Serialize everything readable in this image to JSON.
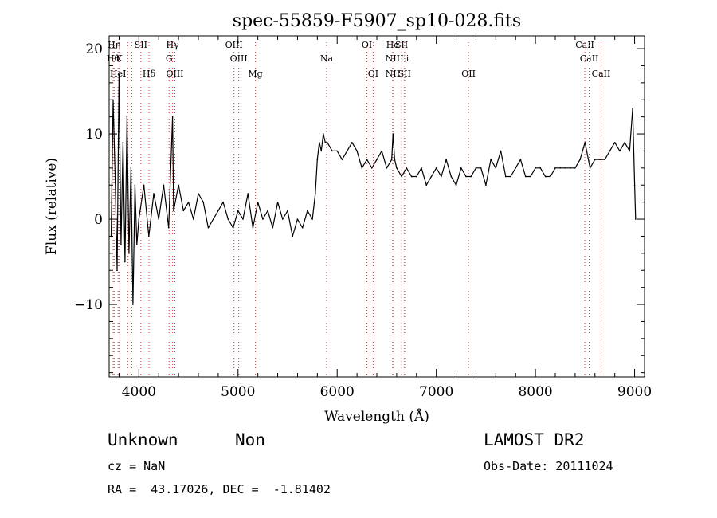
{
  "chart_data": {
    "type": "line",
    "title": "spec-55859-F5907_sp10-028.fits",
    "xlabel": "Wavelength (Å)",
    "ylabel": "Flux (relative)",
    "xlim": [
      3700,
      9100
    ],
    "ylim": [
      -18.5,
      21.5
    ],
    "xticks": [
      4000,
      5000,
      6000,
      7000,
      8000,
      9000
    ],
    "yticks": [
      -10,
      0,
      10,
      20
    ],
    "grid": false,
    "legend": "none",
    "line_color": "#000000",
    "marker_color": "#e04040",
    "series": [
      {
        "x": [
          3720,
          3740,
          3760,
          3780,
          3800,
          3820,
          3840,
          3860,
          3880,
          3900,
          3920,
          3940,
          3960,
          3980,
          4000,
          4050,
          4100,
          4150,
          4200,
          4250,
          4300,
          4340,
          4350,
          4400,
          4450,
          4500,
          4550,
          4600,
          4650,
          4700,
          4750,
          4800,
          4850,
          4900,
          4950,
          5000,
          5050,
          5100,
          5150,
          5200,
          5250,
          5300,
          5350,
          5400,
          5450,
          5500,
          5550,
          5600,
          5650,
          5700,
          5750,
          5780,
          5800,
          5820,
          5840,
          5860,
          5880,
          5900,
          5950,
          6000,
          6050,
          6100,
          6150,
          6200,
          6250,
          6300,
          6350,
          6400,
          6450,
          6500,
          6550,
          6563,
          6580,
          6600,
          6650,
          6700,
          6750,
          6800,
          6850,
          6900,
          6950,
          7000,
          7050,
          7100,
          7150,
          7200,
          7250,
          7300,
          7350,
          7400,
          7450,
          7500,
          7550,
          7600,
          7650,
          7700,
          7750,
          7800,
          7850,
          7900,
          7950,
          8000,
          8050,
          8100,
          8150,
          8200,
          8250,
          8300,
          8350,
          8400,
          8450,
          8500,
          8550,
          8600,
          8650,
          8700,
          8750,
          8800,
          8850,
          8900,
          8950,
          8980,
          9000,
          9010
        ],
        "y": [
          -2,
          14,
          5,
          -6,
          17,
          -3,
          9,
          -5,
          12,
          -4,
          6,
          -10,
          4,
          -3,
          0,
          4,
          -2,
          3,
          0,
          4,
          -1,
          12,
          1,
          4,
          1,
          2,
          0,
          3,
          2,
          -1,
          0,
          1,
          2,
          0,
          -1,
          1,
          0,
          3,
          -1,
          2,
          0,
          1,
          -1,
          2,
          0,
          1,
          -2,
          0,
          -1,
          1,
          0,
          3,
          7,
          9,
          8,
          10,
          9,
          9,
          8,
          8,
          7,
          8,
          9,
          8,
          6,
          7,
          6,
          7,
          8,
          6,
          7,
          10,
          7,
          6,
          5,
          6,
          5,
          5,
          6,
          4,
          5,
          6,
          5,
          7,
          5,
          4,
          6,
          5,
          5,
          6,
          6,
          4,
          7,
          6,
          8,
          5,
          5,
          6,
          7,
          5,
          5,
          6,
          6,
          5,
          5,
          6,
          6,
          6,
          6,
          6,
          7,
          9,
          6,
          7,
          7,
          7,
          8,
          9,
          8,
          9,
          8,
          13,
          4,
          0
        ]
      }
    ],
    "line_markers": [
      {
        "x": 3750,
        "row": 0,
        "label": "Hη"
      },
      {
        "x": 3740,
        "row": 1,
        "label": "Hθ"
      },
      {
        "x": 3800,
        "row": 1,
        "label": "K"
      },
      {
        "x": 3790,
        "row": 2,
        "label": "HeI"
      },
      {
        "x": 3890,
        "row": 0,
        "label": ""
      },
      {
        "x": 3930,
        "row": 0,
        "label": ""
      },
      {
        "x": 4020,
        "row": 0,
        "label": "SII"
      },
      {
        "x": 4102,
        "row": 2,
        "label": "Hδ"
      },
      {
        "x": 4340,
        "row": 0,
        "label": "Hγ"
      },
      {
        "x": 4305,
        "row": 1,
        "label": "G"
      },
      {
        "x": 4363,
        "row": 2,
        "label": "OIII"
      },
      {
        "x": 4959,
        "row": 0,
        "label": "OIII"
      },
      {
        "x": 5007,
        "row": 1,
        "label": "OIII"
      },
      {
        "x": 5175,
        "row": 2,
        "label": "Mg"
      },
      {
        "x": 5893,
        "row": 1,
        "label": "Na"
      },
      {
        "x": 6300,
        "row": 0,
        "label": "OI"
      },
      {
        "x": 6363,
        "row": 2,
        "label": "OI"
      },
      {
        "x": 6563,
        "row": 0,
        "label": "Hα"
      },
      {
        "x": 6560,
        "row": 1,
        "label": "NII"
      },
      {
        "x": 6560,
        "row": 2,
        "label": "NII"
      },
      {
        "x": 6650,
        "row": 0,
        "label": "SII"
      },
      {
        "x": 6680,
        "row": 1,
        "label": "Li"
      },
      {
        "x": 6680,
        "row": 2,
        "label": "SII"
      },
      {
        "x": 7325,
        "row": 2,
        "label": "OII"
      },
      {
        "x": 8498,
        "row": 0,
        "label": "CaII"
      },
      {
        "x": 8542,
        "row": 1,
        "label": "CaII"
      },
      {
        "x": 8662,
        "row": 2,
        "label": "CaII"
      }
    ]
  },
  "footer": {
    "class_label": "Unknown",
    "subclass_label": "Non",
    "survey_label": "LAMOST DR2",
    "cz_text": "cz = NaN",
    "obs_date_text": "Obs-Date: 20111024",
    "coords_text": "RA =  43.17026, DEC =  -1.81402"
  }
}
